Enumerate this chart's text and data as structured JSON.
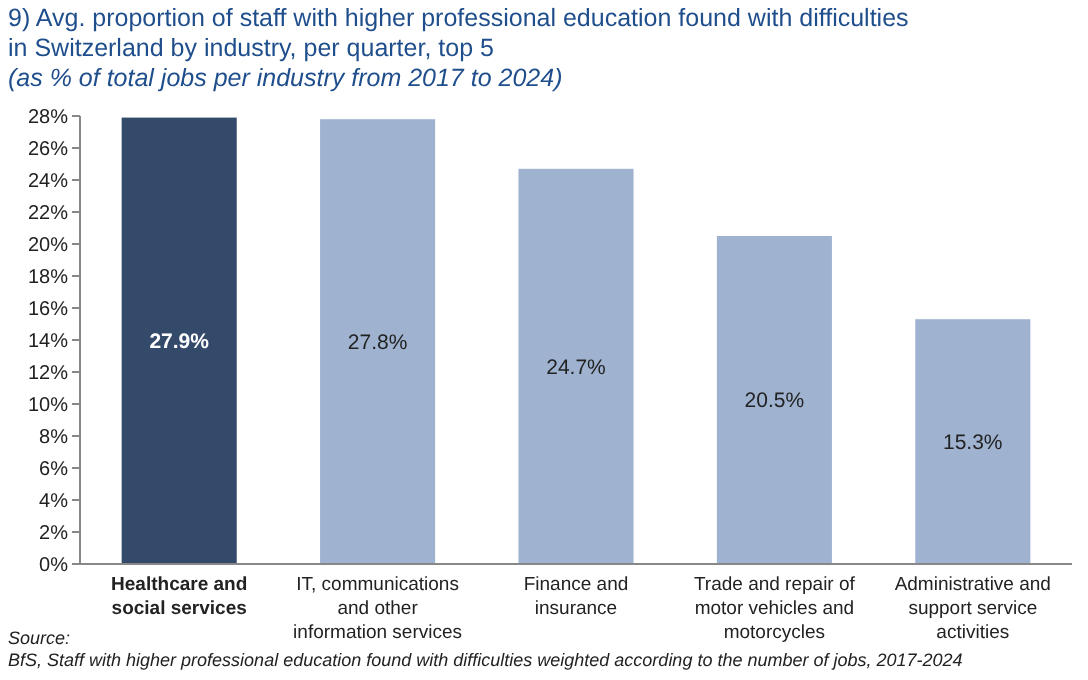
{
  "chart_data": {
    "type": "bar",
    "title": "9) Avg. proportion of staff with higher professional education found with difficulties in Switzerland by industry, per quarter, top 5",
    "subtitle": "(as % of total jobs per industry from 2017 to 2024)",
    "categories": [
      "Healthcare and social services",
      "IT, communications and other information services",
      "Finance and insurance",
      "Trade and repair of motor vehicles and motorcycles",
      "Administrative and support service activities"
    ],
    "values": [
      27.9,
      27.8,
      24.7,
      20.5,
      15.3
    ],
    "colors": [
      "#344a6b",
      "#9fb3d1",
      "#9fb3d1",
      "#9fb3d1",
      "#9fb3d1"
    ],
    "value_labels": [
      "27.9%",
      "27.8%",
      "24.7%",
      "20.5%",
      "15.3%"
    ],
    "ylim": [
      0,
      28
    ],
    "yticks": [
      {
        "value": 0,
        "label": "0%"
      },
      {
        "value": 2,
        "label": "2%"
      },
      {
        "value": 4,
        "label": "4%"
      },
      {
        "value": 6,
        "label": "6%"
      },
      {
        "value": 8,
        "label": "8%"
      },
      {
        "value": 10,
        "label": "10%"
      },
      {
        "value": 12,
        "label": "12%"
      },
      {
        "value": 14,
        "label": "14%"
      },
      {
        "value": 16,
        "label": "16%"
      },
      {
        "value": 18,
        "label": "18%"
      },
      {
        "value": 20,
        "label": "20%"
      },
      {
        "value": 22,
        "label": "22%"
      },
      {
        "value": 24,
        "label": "24%"
      },
      {
        "value": 26,
        "label": "26%"
      },
      {
        "value": 28,
        "label": "28%"
      }
    ],
    "grid": false,
    "annotations": [
      "Source:",
      "BfS, Staff with higher professional education found with difficulties weighted according to the number of jobs, 2017-2024"
    ]
  }
}
